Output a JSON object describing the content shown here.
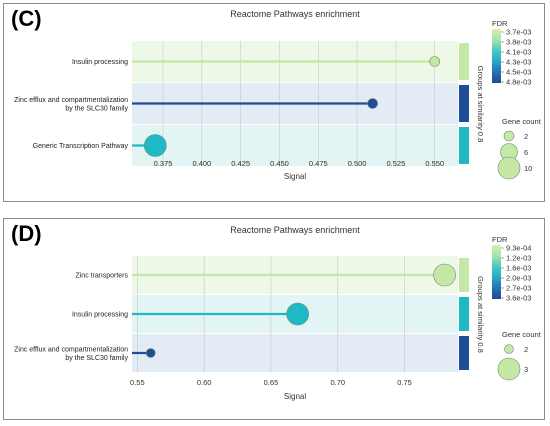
{
  "chart_data": [
    {
      "type": "scatter",
      "panel_label": "(C)",
      "title": "Reactome Pathways enrichment",
      "xlabel": "Signal",
      "xlim": [
        0.355,
        0.565
      ],
      "xticks": [
        "0.375",
        "0.400",
        "0.425",
        "0.450",
        "0.475",
        "0.500",
        "0.525",
        "0.550"
      ],
      "tick_values": [
        0.375,
        0.4,
        0.425,
        0.45,
        0.475,
        0.5,
        0.525,
        0.55
      ],
      "grid": true,
      "categories": [
        "Insulin processing",
        "Zinc efflux and compartmentalization by the SLC30 family",
        "Generic Transcription Pathway"
      ],
      "category_lines": [
        [
          "Insulin processing"
        ],
        [
          "Zinc efflux and compartmentalization",
          "by the SLC30 family"
        ],
        [
          "Generic Transcription Pathway"
        ]
      ],
      "signal": [
        0.55,
        0.51,
        0.37
      ],
      "gene_count": [
        2,
        2,
        10
      ],
      "fdr": [
        0.0037,
        0.0048,
        0.0043
      ],
      "colors": [
        "#c5e8a6",
        "#1f4e96",
        "#1eb9c4"
      ],
      "band_colors": [
        "#eef8e6",
        "#e3ebf5",
        "#e2f5f4"
      ],
      "fdr_legend": {
        "title": "FDR",
        "labels": [
          "3.7e-03",
          "3.8e-03",
          "4.1e-03",
          "4.3e-03",
          "4.5e-03",
          "4.8e-03"
        ],
        "gradient": [
          "#d7f0b2",
          "#a6e2ac",
          "#4cc5c3",
          "#22a9c2",
          "#2671b0",
          "#1f4a8f"
        ]
      },
      "gene_legend": {
        "title": "Gene count",
        "labels": [
          "2",
          "6",
          "10"
        ]
      },
      "groups_label": "Groups at similarity 0.8"
    },
    {
      "type": "scatter",
      "panel_label": "(D)",
      "title": "Reactome Pathways enrichment",
      "xlabel": "Signal",
      "xlim": [
        0.546,
        0.79
      ],
      "xticks": [
        "0.55",
        "0.60",
        "0.65",
        "0.70",
        "0.75"
      ],
      "tick_values": [
        0.55,
        0.6,
        0.65,
        0.7,
        0.75
      ],
      "grid": true,
      "categories": [
        "Zinc transporters",
        "Insulin processing",
        "Zinc efflux and compartmentalization by the SLC30 family"
      ],
      "category_lines": [
        [
          "Zinc transporters"
        ],
        [
          "Insulin processing"
        ],
        [
          "Zinc efflux and compartmentalization",
          "by the SLC30 family"
        ]
      ],
      "signal": [
        0.78,
        0.67,
        0.56
      ],
      "gene_count": [
        3,
        3,
        2
      ],
      "fdr": [
        0.00093,
        0.0016,
        0.0036
      ],
      "colors": [
        "#c5e8a6",
        "#1eb9c4",
        "#1f4e96"
      ],
      "band_colors": [
        "#eef8e6",
        "#e2f5f4",
        "#e3ebf5"
      ],
      "fdr_legend": {
        "title": "FDR",
        "labels": [
          "9.3e-04",
          "1.2e-03",
          "1.6e-03",
          "2.0e-03",
          "2.7e-03",
          "3.6e-03"
        ],
        "gradient": [
          "#d7f0b2",
          "#a6e2ac",
          "#4cc5c3",
          "#22a9c2",
          "#2671b0",
          "#1f4a8f"
        ]
      },
      "gene_legend": {
        "title": "Gene count",
        "labels": [
          "2",
          "3"
        ]
      },
      "groups_label": "Groups at similarity 0.8"
    }
  ]
}
